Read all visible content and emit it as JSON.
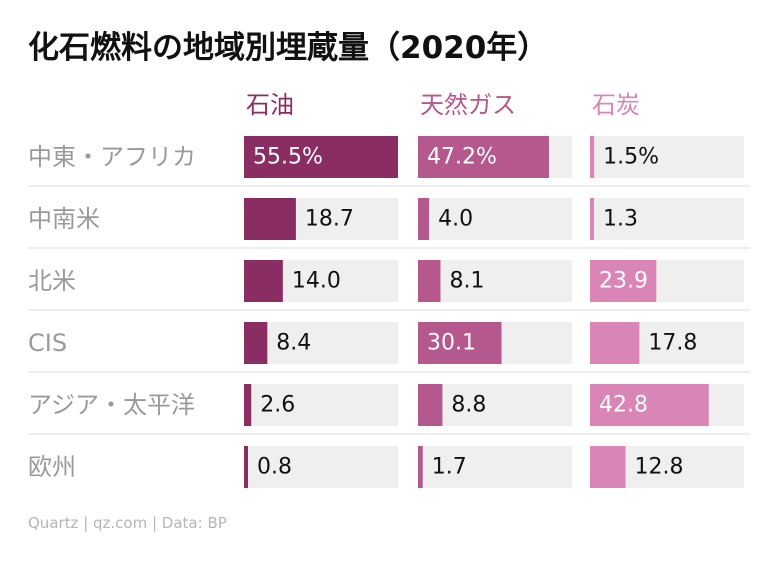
{
  "title": "化石燃料の地域別埋蔵量（2020年）",
  "source": "Quartz | qz.com | Data: BP",
  "colors": {
    "oil": "#8a2d62",
    "gas": "#b4588d",
    "coal": "#d985b5",
    "track": "#efefef",
    "region_text": "#9a9a9a",
    "divider": "#dddddd"
  },
  "chart_data": {
    "type": "bar",
    "title": "化石燃料の地域別埋蔵量（2020年）",
    "unit": "%",
    "xlim": [
      0,
      55.5
    ],
    "categories": [
      "中東・アフリカ",
      "中南米",
      "北米",
      "CIS",
      "アジア・太平洋",
      "欧州"
    ],
    "series": [
      {
        "name": "石油",
        "labels": [
          "55.5%",
          "18.7",
          "14.0",
          "8.4",
          "2.6",
          "0.8"
        ],
        "values": [
          55.5,
          18.7,
          14.0,
          8.4,
          2.6,
          0.8
        ]
      },
      {
        "name": "天然ガス",
        "labels": [
          "47.2%",
          "4.0",
          "8.1",
          "30.1",
          "8.8",
          "1.7"
        ],
        "values": [
          47.2,
          4.0,
          8.1,
          30.1,
          8.8,
          1.7
        ]
      },
      {
        "name": "石炭",
        "labels": [
          "1.5%",
          "1.3",
          "23.9",
          "17.8",
          "42.8",
          "12.8"
        ],
        "values": [
          1.5,
          1.3,
          23.9,
          17.8,
          42.8,
          12.8
        ]
      }
    ]
  }
}
